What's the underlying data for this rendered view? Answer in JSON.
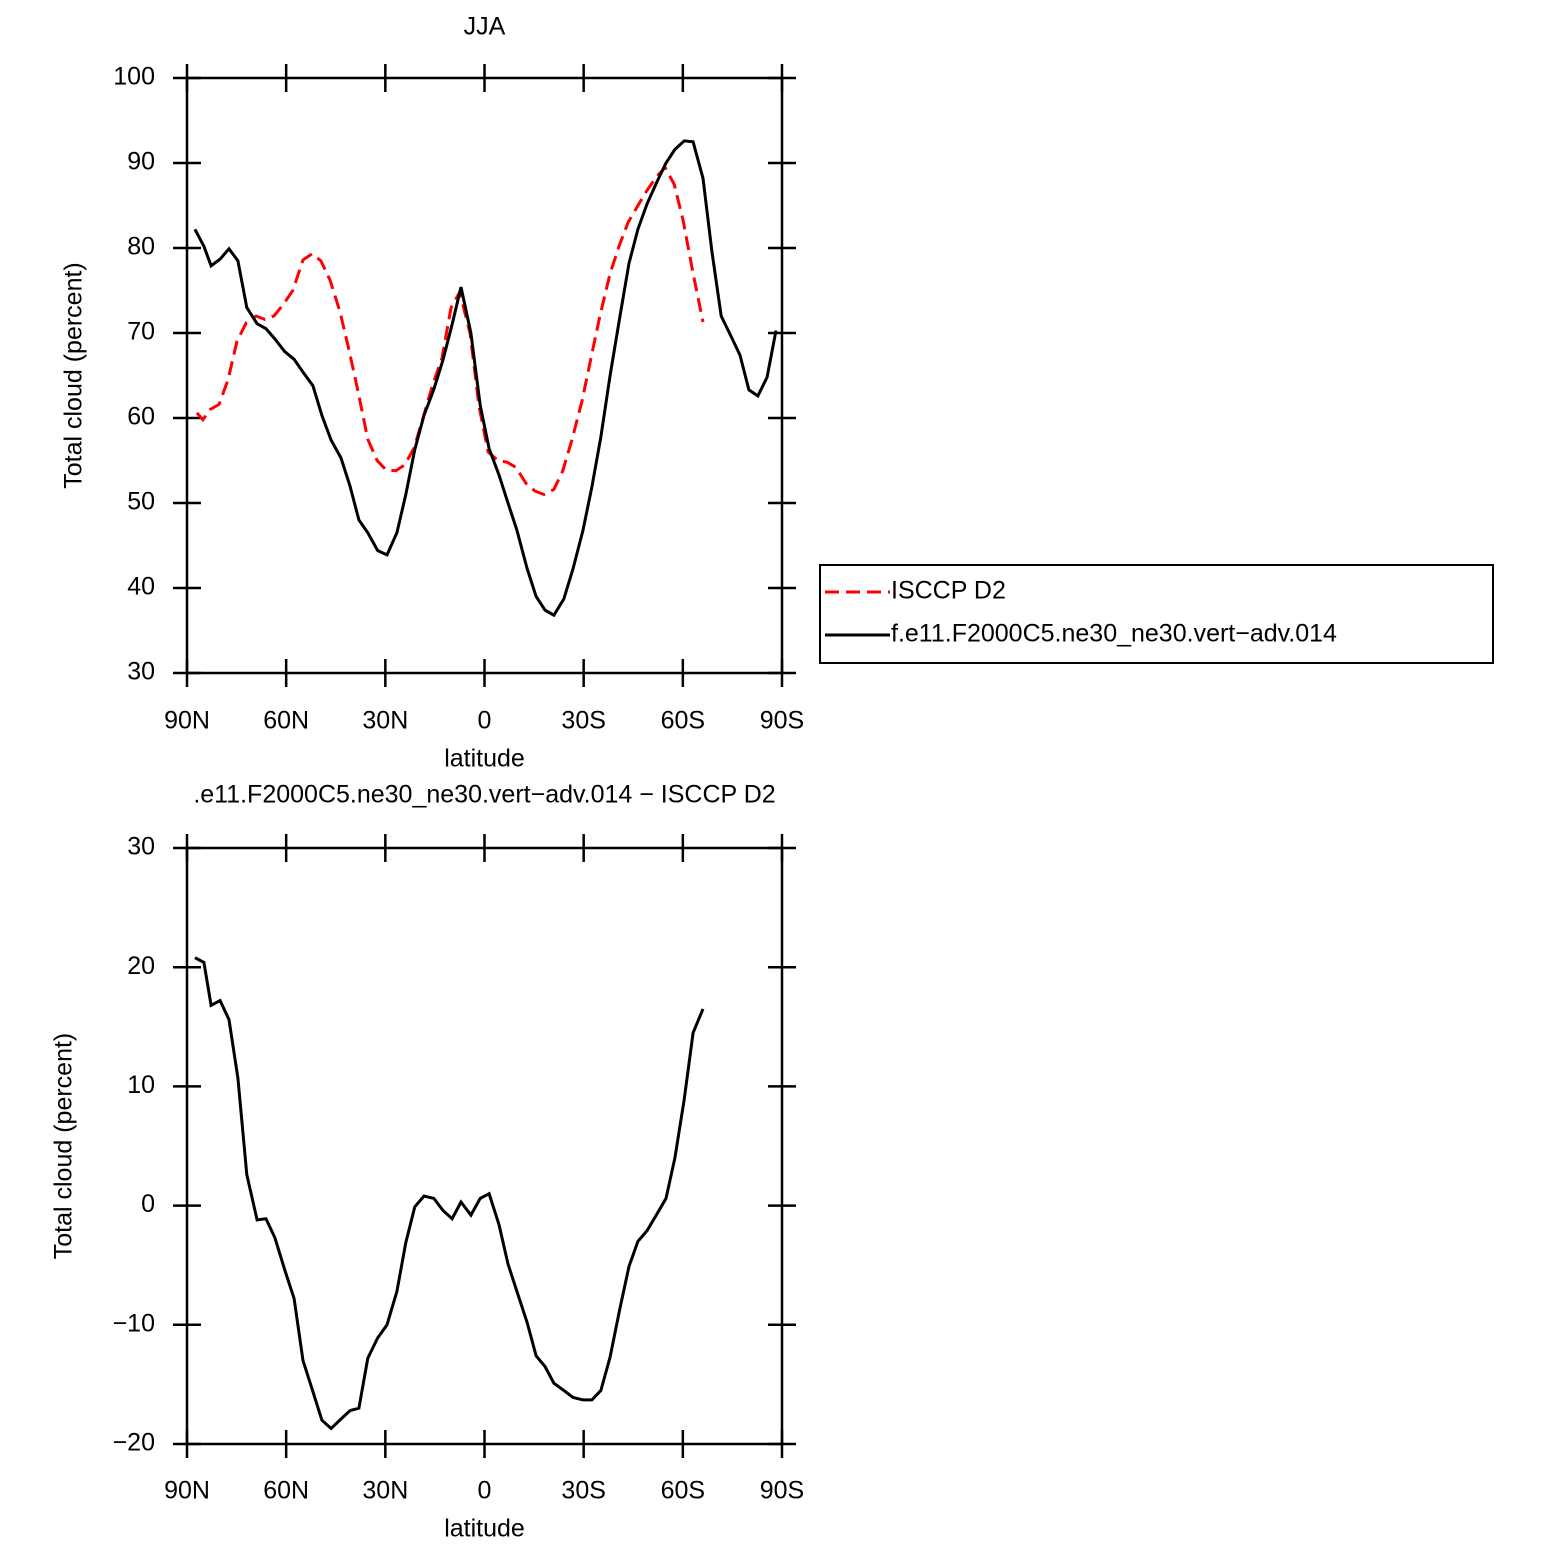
{
  "chart_data": [
    {
      "type": "line",
      "title": "JJA",
      "xlabel": "latitude",
      "ylabel": "Total cloud (percent)",
      "xlim": [
        90,
        -90
      ],
      "xticks": [
        {
          "value": 90,
          "label": "90N"
        },
        {
          "value": 60,
          "label": "60N"
        },
        {
          "value": 30,
          "label": "30N"
        },
        0,
        {
          "value": -30,
          "label": "30S"
        },
        {
          "value": -60,
          "label": "60S"
        },
        {
          "value": -90,
          "label": "90S"
        }
      ],
      "ylim": [
        30,
        100
      ],
      "yticks": [
        30,
        40,
        50,
        60,
        70,
        80,
        90,
        100
      ],
      "legend": "right",
      "series": [
        {
          "name": "ISCCP D2",
          "color": "#ff0000",
          "line_style": "dashed",
          "x": [
            87,
            85.2,
            83,
            80.3,
            77.6,
            74.9,
            72.1,
            69.1,
            66.4,
            63.7,
            61,
            58,
            54.9,
            52.2,
            49.5,
            46.7,
            43.7,
            41,
            38.3,
            35.3,
            32.5,
            29.8,
            26.8,
            24.1,
            21.3,
            18.6,
            15.6,
            12.9,
            10.1,
            7.5,
            4.4,
            1.7,
            -1.1,
            -4.1,
            -6.8,
            -9.5,
            -12.6,
            -15.3,
            -18,
            -21,
            -23.7,
            -26.5,
            -29.5,
            -32.2,
            -34.9,
            -38,
            -40.7,
            -43.4,
            -46.1,
            -49.2,
            -51.9,
            -54.6,
            -57.4,
            -60.1,
            -63.1,
            -66.1
          ],
          "values": [
            60.6,
            59.8,
            61,
            61.6,
            64.5,
            69,
            71.2,
            72,
            71.6,
            72,
            73.3,
            75,
            78.6,
            79.3,
            78.5,
            76.2,
            72.5,
            68,
            63.2,
            57.5,
            55,
            53.9,
            53.8,
            54.5,
            56.5,
            60,
            64,
            67,
            73,
            74.8,
            70,
            61.5,
            56,
            55,
            54.8,
            54.2,
            52.3,
            51.4,
            51,
            51.6,
            53.8,
            57.5,
            62,
            67,
            72,
            77,
            80.2,
            83,
            84.8,
            86.8,
            88.3,
            89.5,
            87.5,
            83.2,
            77,
            71.3
          ]
        },
        {
          "name": "f.e11.F2000C5.ne30_ne30.vert−adv.014",
          "color": "#000000",
          "line_style": "solid",
          "x": [
            87.6,
            84.9,
            82.7,
            80,
            77.3,
            74.6,
            71.9,
            68.8,
            66.1,
            63.4,
            60.4,
            57.6,
            54.9,
            51.9,
            49.2,
            46.4,
            43.4,
            40.7,
            38,
            35.3,
            32.3,
            29.5,
            26.5,
            23.8,
            21.1,
            18.3,
            15.3,
            12.6,
            9.8,
            7.1,
            4.1,
            1.3,
            -1.4,
            -4.4,
            -7.1,
            -9.8,
            -12.9,
            -15.6,
            -18.3,
            -21,
            -24,
            -26.8,
            -29.8,
            -32.5,
            -35.2,
            -38,
            -41,
            -43.7,
            -46.4,
            -49.2,
            -52.2,
            -54.9,
            -57.6,
            -60.4,
            -63.1,
            -66.1,
            -68.8,
            -71.6,
            -74.6,
            -77.3,
            -80,
            -82.7,
            -85.5,
            -88.2
          ],
          "values": [
            82.2,
            80.2,
            77.9,
            78.7,
            79.9,
            78.5,
            73,
            71.1,
            70.5,
            69.3,
            67.8,
            66.9,
            65.4,
            63.8,
            60.3,
            57.4,
            55.3,
            52,
            48,
            46.5,
            44.4,
            43.9,
            46.5,
            51,
            56.3,
            60.3,
            63.4,
            66.8,
            71,
            75.4,
            70,
            61.5,
            56.4,
            53.3,
            50,
            46.8,
            42.3,
            39,
            37.4,
            36.8,
            38.7,
            42.3,
            46.8,
            51.9,
            57.8,
            65,
            72,
            78.2,
            82.2,
            85.2,
            87.8,
            90,
            91.6,
            92.6,
            92.5,
            88.2,
            79.6,
            72,
            69.6,
            67.4,
            63.3,
            62.6,
            64.8,
            70.3
          ]
        }
      ]
    },
    {
      "type": "line",
      "title": ".e11.F2000C5.ne30_ne30.vert−adv.014 − ISCCP D2",
      "xlabel": "latitude",
      "ylabel": "Total cloud (percent)",
      "xlim": [
        90,
        -90
      ],
      "xticks": [
        {
          "value": 90,
          "label": "90N"
        },
        {
          "value": 60,
          "label": "60N"
        },
        {
          "value": 30,
          "label": "30N"
        },
        0,
        {
          "value": -30,
          "label": "30S"
        },
        {
          "value": -60,
          "label": "60S"
        },
        {
          "value": -90,
          "label": "90S"
        }
      ],
      "ylim": [
        -20,
        30
      ],
      "yticks": [
        {
          "value": -20,
          "label": "−20"
        },
        {
          "value": -10,
          "label": "−10"
        },
        0,
        10,
        20,
        30
      ],
      "color": "#000000",
      "x": [
        87.6,
        84.9,
        82.7,
        80,
        77.3,
        74.6,
        71.9,
        68.8,
        66.1,
        63.4,
        60.4,
        57.6,
        54.9,
        51.9,
        49.2,
        46.4,
        43.4,
        40.7,
        38,
        35.3,
        32.3,
        29.5,
        26.5,
        23.8,
        21.1,
        18.3,
        15.3,
        12.6,
        9.8,
        7.1,
        4.1,
        1.3,
        -1.4,
        -4.4,
        -7.1,
        -9.8,
        -12.9,
        -15.6,
        -18.3,
        -21,
        -24,
        -26.8,
        -29.8,
        -32.5,
        -35.2,
        -38,
        -41,
        -43.7,
        -46.4,
        -49.2,
        -52.2,
        -54.9,
        -57.6,
        -60.4,
        -63.1,
        -66.1
      ],
      "values": [
        20.8,
        20.4,
        16.8,
        17.2,
        15.6,
        10.7,
        2.6,
        -1.2,
        -1.1,
        -2.7,
        -5.4,
        -7.8,
        -13,
        -15.6,
        -18,
        -18.7,
        -17.9,
        -17.2,
        -17,
        -12.8,
        -11.1,
        -10,
        -7.2,
        -3.1,
        -0.1,
        0.8,
        0.6,
        -0.4,
        -1.1,
        0.3,
        -0.8,
        0.6,
        1,
        -1.6,
        -4.9,
        -7.2,
        -9.8,
        -12.6,
        -13.5,
        -14.9,
        -15.5,
        -16.1,
        -16.3,
        -16.3,
        -15.5,
        -12.7,
        -8.6,
        -5.1,
        -3,
        -2.1,
        -0.7,
        0.6,
        4,
        8.9,
        14.5,
        16.5
      ]
    }
  ]
}
